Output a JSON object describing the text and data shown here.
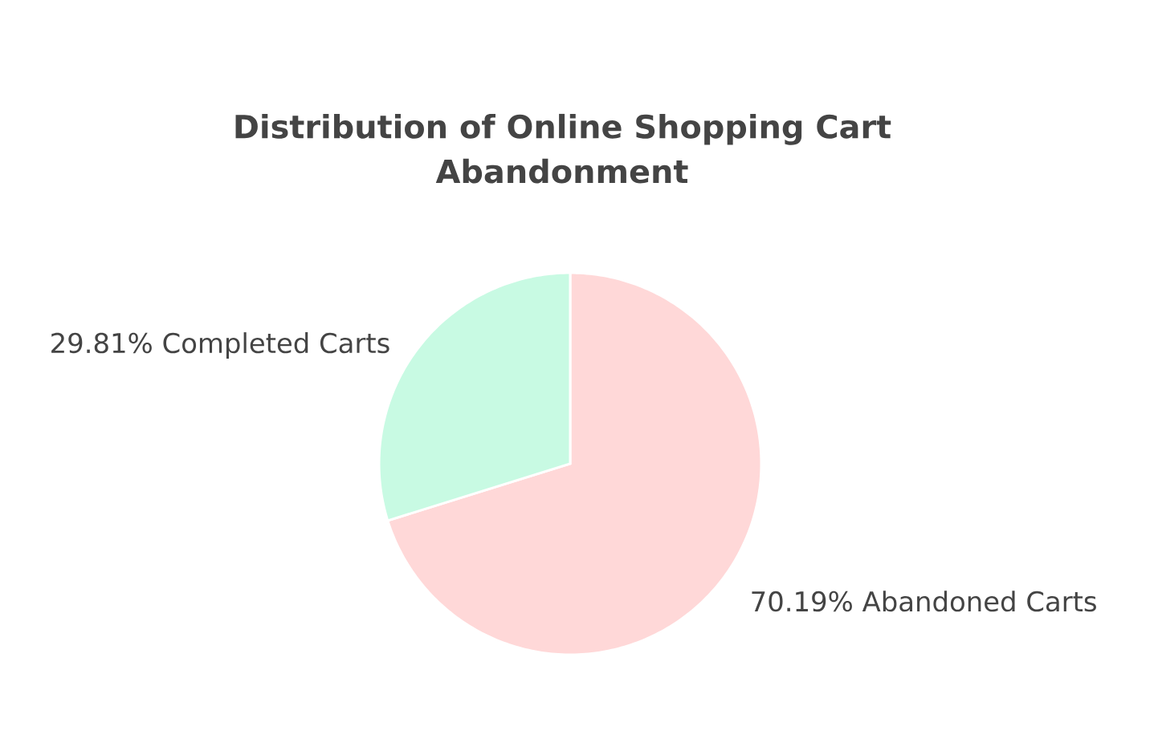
{
  "chart_data": {
    "type": "pie",
    "title": "Distribution of Online Shopping Cart Abandonment",
    "categories": [
      "Abandoned Carts",
      "Completed Carts"
    ],
    "values": [
      70.19,
      29.81
    ],
    "colors": [
      "#ffd8d8",
      "#c8fae3"
    ],
    "value_labels": [
      "70.19%",
      "29.81%"
    ]
  }
}
